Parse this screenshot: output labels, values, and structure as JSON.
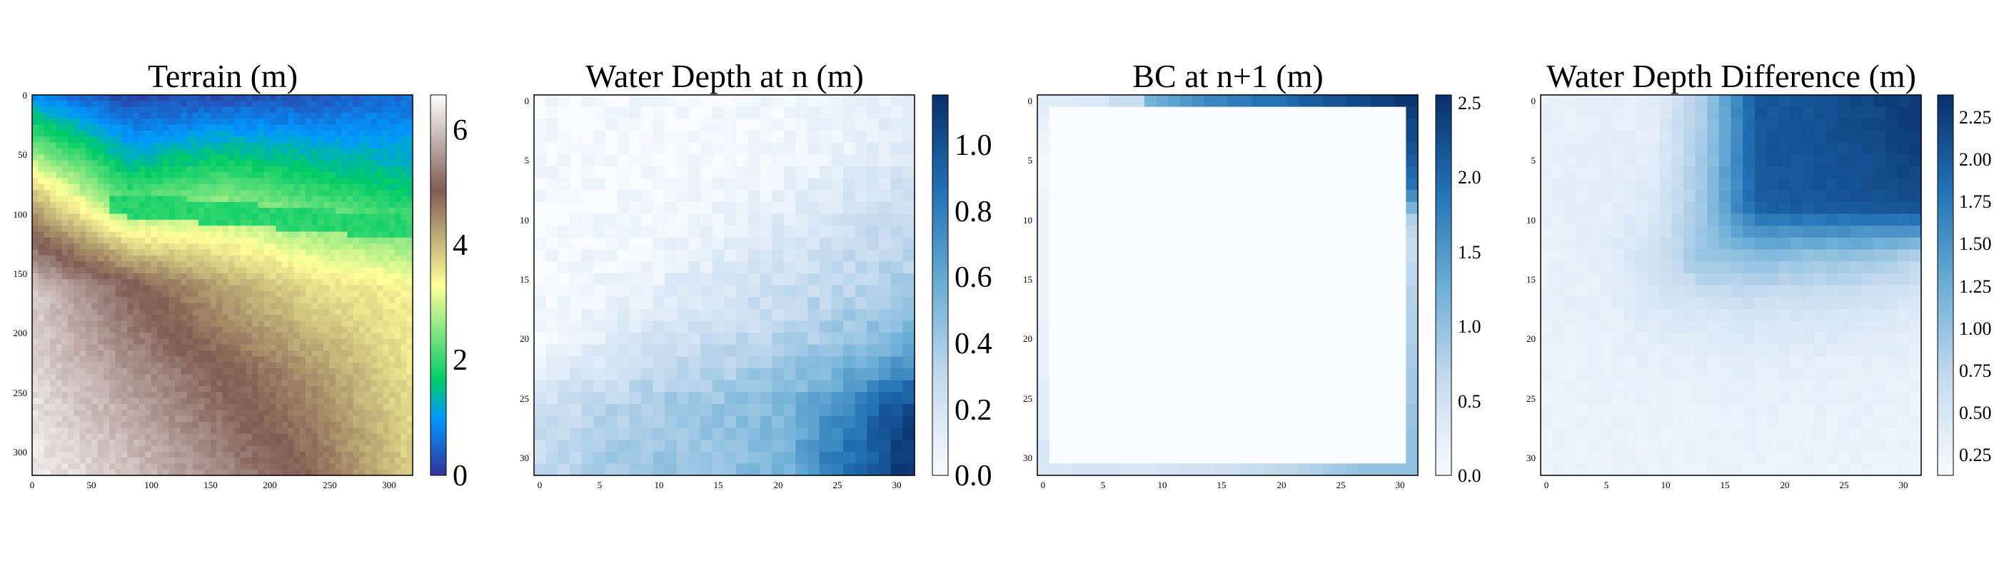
{
  "chart_data": [
    {
      "type": "heatmap",
      "title": "Terrain (m)",
      "colormap": "terrain",
      "grid_size": 320,
      "x_ticks": [
        "0",
        "50",
        "100",
        "150",
        "200",
        "250",
        "300"
      ],
      "y_ticks": [
        "0",
        "50",
        "100",
        "150",
        "200",
        "250",
        "300"
      ],
      "colorbar_ticks": [
        "0",
        "2",
        "4",
        "6"
      ],
      "vmin": 0,
      "vmax": 6.6,
      "values": [
        [
          0.9,
          0.2,
          0.3,
          0.35,
          0.6
        ],
        [
          3.8,
          2.0,
          2.4,
          2.0,
          1.6
        ],
        [
          6.0,
          5.0,
          4.2,
          3.6,
          3.4
        ],
        [
          6.2,
          5.6,
          5.0,
          4.4,
          3.6
        ],
        [
          6.4,
          6.0,
          5.4,
          4.8,
          3.8
        ]
      ]
    },
    {
      "type": "heatmap",
      "title": "Water Depth at n (m)",
      "colormap": "Blues",
      "grid_size": 32,
      "x_ticks": [
        "0",
        "5",
        "10",
        "15",
        "20",
        "25",
        "30"
      ],
      "y_ticks": [
        "0",
        "5",
        "10",
        "15",
        "20",
        "25",
        "30"
      ],
      "colorbar_ticks": [
        "0.0",
        "0.2",
        "0.4",
        "0.6",
        "0.8",
        "1.0"
      ],
      "vmin": 0,
      "vmax": 1.15,
      "values": [
        [
          0.02,
          0.02,
          0.02,
          0.02,
          0.03,
          0.05,
          0.08
        ],
        [
          0.02,
          0.02,
          0.02,
          0.03,
          0.05,
          0.12,
          0.18
        ],
        [
          0.02,
          0.02,
          0.03,
          0.08,
          0.15,
          0.22,
          0.3
        ],
        [
          0.02,
          0.04,
          0.1,
          0.18,
          0.25,
          0.32,
          0.38
        ],
        [
          0.06,
          0.14,
          0.24,
          0.3,
          0.36,
          0.45,
          0.55
        ],
        [
          0.22,
          0.32,
          0.4,
          0.45,
          0.52,
          0.75,
          1.05
        ],
        [
          0.3,
          0.4,
          0.42,
          0.45,
          0.55,
          0.9,
          1.1
        ]
      ]
    },
    {
      "type": "heatmap",
      "title": "BC at n+1 (m)",
      "colormap": "Blues",
      "grid_size": 32,
      "x_ticks": [
        "0",
        "5",
        "10",
        "15",
        "20",
        "25",
        "30"
      ],
      "y_ticks": [
        "0",
        "5",
        "10",
        "15",
        "20",
        "25",
        "30"
      ],
      "colorbar_ticks": [
        "0.0",
        "0.5",
        "1.0",
        "1.5",
        "2.0",
        "2.5"
      ],
      "vmin": 0,
      "vmax": 2.55,
      "top_edge": [
        0.3,
        0.3,
        0.3,
        0.35,
        0.35,
        0.35,
        0.6,
        0.6,
        0.6,
        1.2,
        1.3,
        1.4,
        1.5,
        1.6,
        1.7,
        1.7,
        1.8,
        1.8,
        1.9,
        1.9,
        1.9,
        2.0,
        2.1,
        2.1,
        2.2,
        2.2,
        2.3,
        2.3,
        2.4,
        2.4,
        2.5,
        2.5
      ],
      "left_edge": [
        0.3,
        0.25,
        0.2,
        0.15,
        0.12,
        0.1,
        0.1,
        0.1,
        0.12,
        0.15,
        0.15,
        0.15,
        0.15,
        0.15,
        0.15,
        0.15,
        0.15,
        0.15,
        0.15,
        0.2,
        0.2,
        0.2,
        0.2,
        0.2,
        0.25,
        0.25,
        0.3,
        0.3,
        0.3,
        0.4,
        0.4,
        0.4
      ],
      "right_edge": [
        2.5,
        2.4,
        2.3,
        2.3,
        2.2,
        2.1,
        2.0,
        1.9,
        1.6,
        1.2,
        0.8,
        0.7,
        0.6,
        0.6,
        0.7,
        0.7,
        0.75,
        0.75,
        0.8,
        0.8,
        0.8,
        0.85,
        0.85,
        0.9,
        0.9,
        0.9,
        0.95,
        0.95,
        1.0,
        1.0,
        1.0,
        1.0
      ],
      "bottom_edge": [
        0.4,
        0.4,
        0.4,
        0.45,
        0.45,
        0.45,
        0.45,
        0.4,
        0.4,
        0.4,
        0.45,
        0.45,
        0.5,
        0.5,
        0.5,
        0.55,
        0.55,
        0.6,
        0.6,
        0.65,
        0.7,
        0.7,
        0.75,
        0.8,
        0.85,
        0.9,
        0.95,
        1.0,
        1.0,
        1.0,
        1.0,
        1.0
      ]
    },
    {
      "type": "heatmap",
      "title": "Water Depth Difference (m)",
      "colormap": "Blues",
      "grid_size": 32,
      "x_ticks": [
        "0",
        "5",
        "10",
        "15",
        "20",
        "25",
        "30"
      ],
      "y_ticks": [
        "0",
        "5",
        "10",
        "15",
        "20",
        "25",
        "30"
      ],
      "colorbar_ticks": [
        "0.25",
        "0.50",
        "0.75",
        "1.00",
        "1.25",
        "1.50",
        "1.75",
        "2.00",
        "2.25"
      ],
      "vmin": 0.1,
      "vmax": 2.35,
      "values": [
        [
          0.28,
          0.32,
          0.32,
          0.85,
          2.0,
          2.05,
          2.15,
          2.25
        ],
        [
          0.3,
          0.32,
          0.34,
          0.9,
          2.0,
          2.05,
          2.1,
          2.2
        ],
        [
          0.3,
          0.32,
          0.4,
          0.95,
          1.95,
          2.0,
          2.05,
          2.1
        ],
        [
          0.28,
          0.3,
          0.55,
          0.95,
          1.0,
          0.95,
          0.9,
          0.75
        ],
        [
          0.28,
          0.3,
          0.4,
          0.45,
          0.5,
          0.5,
          0.45,
          0.4
        ],
        [
          0.25,
          0.27,
          0.3,
          0.32,
          0.32,
          0.32,
          0.3,
          0.28
        ],
        [
          0.25,
          0.25,
          0.25,
          0.27,
          0.27,
          0.27,
          0.27,
          0.25
        ],
        [
          0.24,
          0.24,
          0.24,
          0.24,
          0.24,
          0.24,
          0.24,
          0.24
        ]
      ]
    }
  ]
}
